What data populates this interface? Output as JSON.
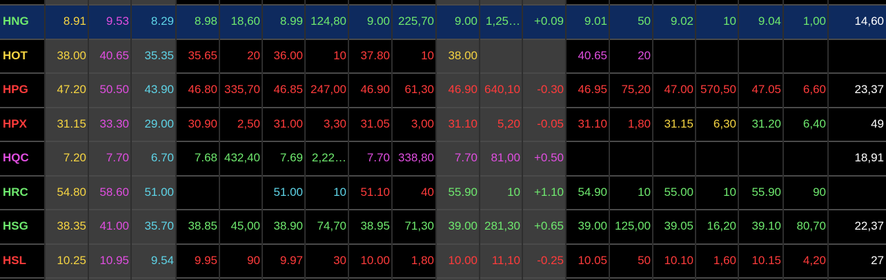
{
  "rows": [
    {
      "cells": [
        "HNG",
        "8.91",
        "9.53",
        "8.29",
        "8.98",
        "18,60",
        "8.99",
        "124,80",
        "9.00",
        "225,70",
        "9.00",
        "1,25…",
        "+0.09",
        "9.01",
        "50",
        "9.02",
        "10",
        "9.04",
        "1,00",
        "14,60"
      ],
      "colors": [
        "#6ee86e",
        "#f5d442",
        "#e04ee0",
        "#5ed3e6",
        "#6ee86e",
        "#6ee86e",
        "#6ee86e",
        "#6ee86e",
        "#6ee86e",
        "#6ee86e",
        "#6ee86e",
        "#6ee86e",
        "#6ee86e",
        "#6ee86e",
        "#6ee86e",
        "#6ee86e",
        "#6ee86e",
        "#6ee86e",
        "#6ee86e",
        "#ffffff"
      ],
      "highlight": true
    },
    {
      "cells": [
        "HOT",
        "38.00",
        "40.65",
        "35.35",
        "35.65",
        "20",
        "36.00",
        "10",
        "37.80",
        "10",
        "38.00",
        null,
        null,
        "40.65",
        "20",
        null,
        null,
        null,
        null,
        null
      ],
      "colors": [
        "#f5d442",
        "#f5d442",
        "#e04ee0",
        "#5ed3e6",
        "#ff3b3b",
        "#ff3b3b",
        "#ff3b3b",
        "#ff3b3b",
        "#ff3b3b",
        "#ff3b3b",
        "#f5d442",
        null,
        null,
        "#e04ee0",
        "#e04ee0",
        null,
        null,
        null,
        null,
        null
      ]
    },
    {
      "cells": [
        "HPG",
        "47.20",
        "50.50",
        "43.90",
        "46.80",
        "335,70",
        "46.85",
        "247,00",
        "46.90",
        "61,30",
        "46.90",
        "640,10",
        "-0.30",
        "46.95",
        "75,20",
        "47.00",
        "570,50",
        "47.05",
        "6,60",
        "23,37"
      ],
      "colors": [
        "#ff3b3b",
        "#f5d442",
        "#e04ee0",
        "#5ed3e6",
        "#ff3b3b",
        "#ff3b3b",
        "#ff3b3b",
        "#ff3b3b",
        "#ff3b3b",
        "#ff3b3b",
        "#ff3b3b",
        "#ff3b3b",
        "#ff3b3b",
        "#ff3b3b",
        "#ff3b3b",
        "#ff3b3b",
        "#ff3b3b",
        "#ff3b3b",
        "#ff3b3b",
        "#ffffff"
      ]
    },
    {
      "cells": [
        "HPX",
        "31.15",
        "33.30",
        "29.00",
        "30.90",
        "2,50",
        "31.00",
        "3,30",
        "31.05",
        "3,00",
        "31.10",
        "5,20",
        "-0.05",
        "31.10",
        "1,80",
        "31.15",
        "6,30",
        "31.20",
        "6,40",
        "49"
      ],
      "colors": [
        "#ff3b3b",
        "#f5d442",
        "#e04ee0",
        "#5ed3e6",
        "#ff3b3b",
        "#ff3b3b",
        "#ff3b3b",
        "#ff3b3b",
        "#ff3b3b",
        "#ff3b3b",
        "#ff3b3b",
        "#ff3b3b",
        "#ff3b3b",
        "#ff3b3b",
        "#ff3b3b",
        "#f5d442",
        "#f5d442",
        "#6ee86e",
        "#6ee86e",
        "#ffffff"
      ]
    },
    {
      "cells": [
        "HQC",
        "7.20",
        "7.70",
        "6.70",
        "7.68",
        "432,40",
        "7.69",
        "2,22…",
        "7.70",
        "338,80",
        "7.70",
        "81,00",
        "+0.50",
        null,
        null,
        null,
        null,
        null,
        null,
        "18,91"
      ],
      "colors": [
        "#e04ee0",
        "#f5d442",
        "#e04ee0",
        "#5ed3e6",
        "#6ee86e",
        "#6ee86e",
        "#6ee86e",
        "#6ee86e",
        "#e04ee0",
        "#e04ee0",
        "#e04ee0",
        "#e04ee0",
        "#e04ee0",
        null,
        null,
        null,
        null,
        null,
        null,
        "#ffffff"
      ]
    },
    {
      "cells": [
        "HRC",
        "54.80",
        "58.60",
        "51.00",
        null,
        null,
        "51.00",
        "10",
        "51.10",
        "40",
        "55.90",
        "10",
        "+1.10",
        "54.90",
        "10",
        "55.00",
        "10",
        "55.90",
        "90",
        null
      ],
      "colors": [
        "#6ee86e",
        "#f5d442",
        "#e04ee0",
        "#5ed3e6",
        null,
        null,
        "#5ed3e6",
        "#5ed3e6",
        "#ff3b3b",
        "#ff3b3b",
        "#6ee86e",
        "#6ee86e",
        "#6ee86e",
        "#6ee86e",
        "#6ee86e",
        "#6ee86e",
        "#6ee86e",
        "#6ee86e",
        "#6ee86e",
        null
      ]
    },
    {
      "cells": [
        "HSG",
        "38.35",
        "41.00",
        "35.70",
        "38.85",
        "45,00",
        "38.90",
        "74,70",
        "38.95",
        "71,30",
        "39.00",
        "281,30",
        "+0.65",
        "39.00",
        "125,00",
        "39.05",
        "16,20",
        "39.10",
        "80,70",
        "22,37"
      ],
      "colors": [
        "#6ee86e",
        "#f5d442",
        "#e04ee0",
        "#5ed3e6",
        "#6ee86e",
        "#6ee86e",
        "#6ee86e",
        "#6ee86e",
        "#6ee86e",
        "#6ee86e",
        "#6ee86e",
        "#6ee86e",
        "#6ee86e",
        "#6ee86e",
        "#6ee86e",
        "#6ee86e",
        "#6ee86e",
        "#6ee86e",
        "#6ee86e",
        "#ffffff"
      ]
    },
    {
      "cells": [
        "HSL",
        "10.25",
        "10.95",
        "9.54",
        "9.95",
        "90",
        "9.97",
        "30",
        "10.00",
        "1,80",
        "10.00",
        "11,10",
        "-0.25",
        "10.05",
        "50",
        "10.10",
        "1,60",
        "10.15",
        "4,20",
        "27"
      ],
      "colors": [
        "#ff3b3b",
        "#f5d442",
        "#e04ee0",
        "#5ed3e6",
        "#ff3b3b",
        "#ff3b3b",
        "#ff3b3b",
        "#ff3b3b",
        "#ff3b3b",
        "#ff3b3b",
        "#ff3b3b",
        "#ff3b3b",
        "#ff3b3b",
        "#ff3b3b",
        "#ff3b3b",
        "#ff3b3b",
        "#ff3b3b",
        "#ff3b3b",
        "#ff3b3b",
        "#ffffff"
      ]
    }
  ]
}
